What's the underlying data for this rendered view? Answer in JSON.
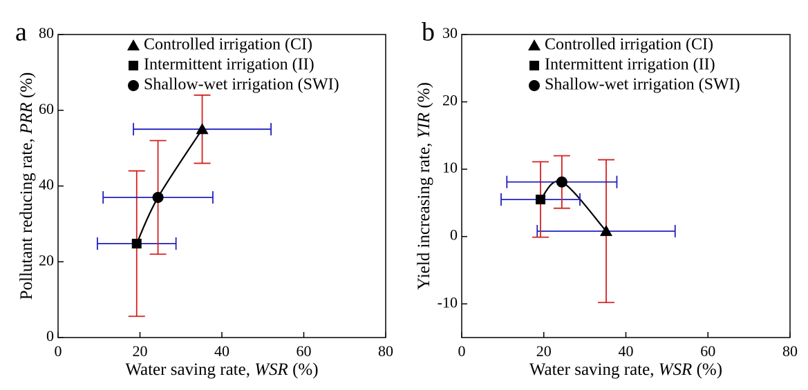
{
  "chart_data": [
    {
      "type": "scatter",
      "panel": "a",
      "xlabel": {
        "text": "Water saving rate, ",
        "italic": "WSR",
        "unit": " (%)"
      },
      "ylabel": {
        "text": "Pollutant reducing rate, ",
        "italic": "PRR",
        "unit": " (%)"
      },
      "xlim": [
        0,
        80
      ],
      "xticks": [
        0,
        20,
        40,
        60,
        80
      ],
      "ylim": [
        0,
        80
      ],
      "yticks": [
        0,
        20,
        40,
        60,
        80
      ],
      "xerr_color": "#1f1fbf",
      "yerr_color": "#d42020",
      "marker_color": "#000000",
      "series": [
        {
          "name": "Controlled irrigation (CI)",
          "marker": "triangle",
          "x": 35.2,
          "y": 55,
          "xerr": 16.8,
          "yerr": 9
        },
        {
          "name": "Intermittent irrigation (II)",
          "marker": "square",
          "x": 19.2,
          "y": 24.8,
          "xerr": 9.6,
          "yerr": 19.2
        },
        {
          "name": "Shallow-wet irrigation (SWI)",
          "marker": "circle",
          "x": 24.4,
          "y": 37,
          "xerr": 13.4,
          "yerr": 15
        }
      ]
    },
    {
      "type": "scatter",
      "panel": "b",
      "xlabel": {
        "text": "Water saving rate, ",
        "italic": "WSR",
        "unit": " (%)"
      },
      "ylabel": {
        "text": "Yield increasing rate, ",
        "italic": "YIR",
        "unit": " (%)"
      },
      "xlim": [
        0,
        80
      ],
      "xticks": [
        0,
        20,
        40,
        60,
        80
      ],
      "ylim": [
        -15,
        30
      ],
      "yticks": [
        -10,
        0,
        10,
        20,
        30
      ],
      "xerr_color": "#1f1fbf",
      "yerr_color": "#d42020",
      "marker_color": "#000000",
      "series": [
        {
          "name": "Controlled irrigation (CI)",
          "marker": "triangle",
          "x": 35.2,
          "y": 0.8,
          "xerr": 16.8,
          "yerr": 10.6
        },
        {
          "name": "Intermittent irrigation (II)",
          "marker": "square",
          "x": 19.2,
          "y": 5.5,
          "xerr": 9.6,
          "yerr": 5.6
        },
        {
          "name": "Shallow-wet irrigation (SWI)",
          "marker": "circle",
          "x": 24.4,
          "y": 8.1,
          "xerr": 13.4,
          "yerr": 3.9
        }
      ]
    }
  ]
}
